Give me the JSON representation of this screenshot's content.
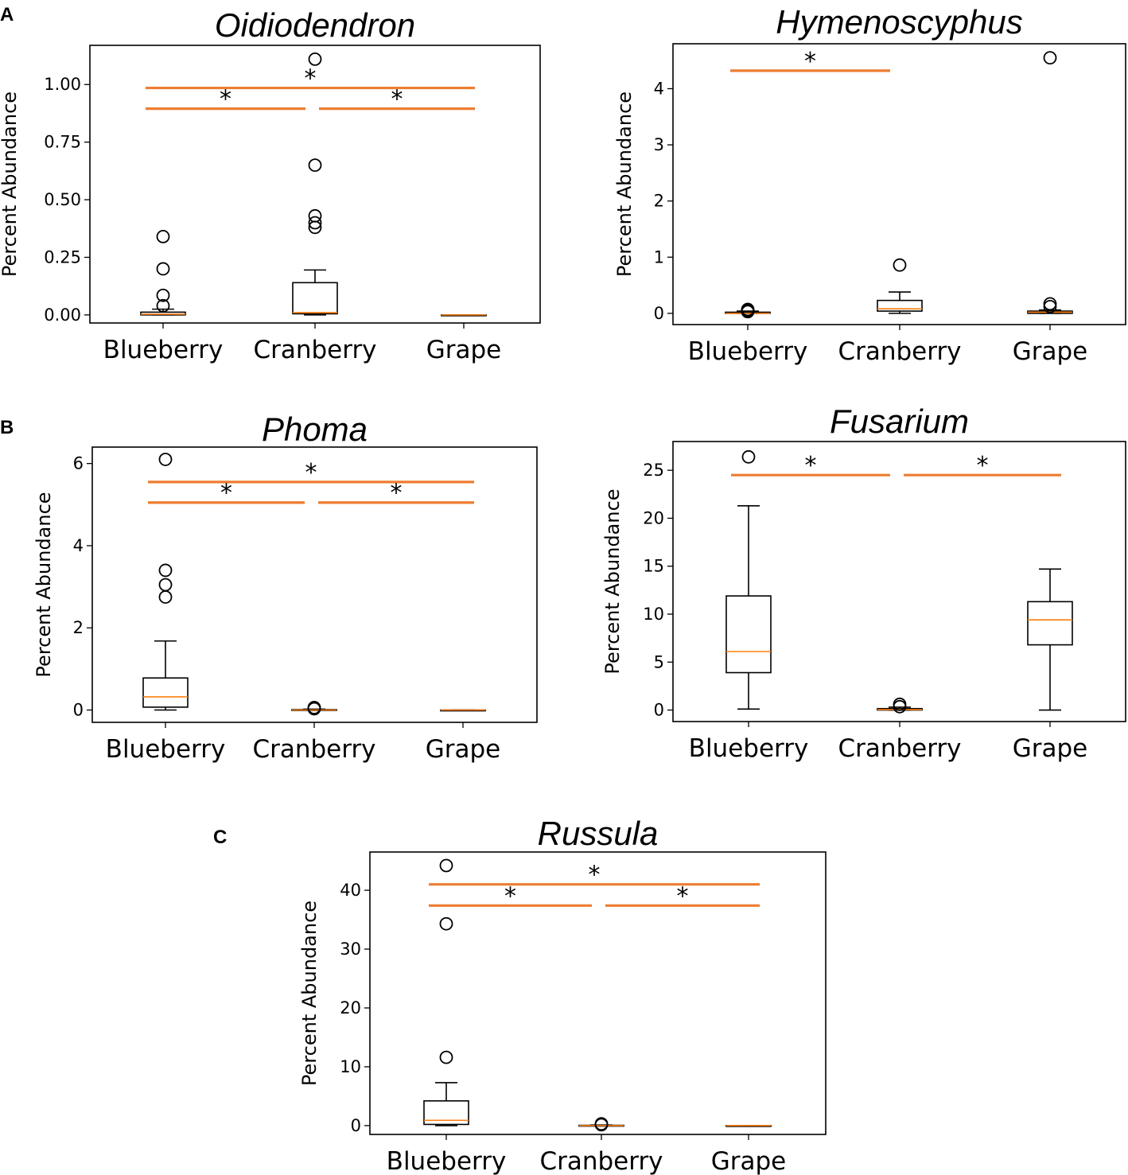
{
  "panel_letters": [
    "A",
    "B",
    "C"
  ],
  "chart_data": [
    {
      "type": "box",
      "panel": "A",
      "title": "Oidiodendron",
      "xlabel": "",
      "ylabel": "Percent Abundance",
      "categories": [
        "Blueberry",
        "Cranberry",
        "Grape"
      ],
      "ylim": [
        -0.035,
        1.17
      ],
      "yticks": [
        0.0,
        0.25,
        0.5,
        0.75,
        1.0
      ],
      "ytick_labels": [
        "0.00",
        "0.25",
        "0.50",
        "0.75",
        "1.00"
      ],
      "boxes": [
        {
          "whislo": 0.0,
          "q1": 0.0,
          "med": 0.003,
          "q3": 0.012,
          "whishi": 0.025,
          "fliers": [
            0.34,
            0.2,
            0.085,
            0.04
          ]
        },
        {
          "whislo": 0.0,
          "q1": 0.005,
          "med": 0.01,
          "q3": 0.14,
          "whishi": 0.195,
          "fliers": [
            1.11,
            0.65,
            0.43,
            0.4,
            0.38
          ]
        },
        {
          "whislo": 0.0,
          "q1": 0.0,
          "med": 0.0,
          "q3": 0.0,
          "whishi": 0.0,
          "fliers": []
        }
      ],
      "significance": [
        {
          "from": 0,
          "to": 2,
          "y": 0.985,
          "label": "*"
        },
        {
          "from": 0,
          "to": 1,
          "y": 0.895,
          "label": "*"
        },
        {
          "from": 1,
          "to": 2,
          "y": 0.895,
          "label": "*"
        }
      ]
    },
    {
      "type": "box",
      "panel": "A",
      "title": "Hymenoscyphus",
      "xlabel": "",
      "ylabel": "Percent Abundance",
      "categories": [
        "Blueberry",
        "Cranberry",
        "Grape"
      ],
      "ylim": [
        -0.2,
        4.8
      ],
      "yticks": [
        0,
        1,
        2,
        3,
        4
      ],
      "ytick_labels": [
        "0",
        "1",
        "2",
        "3",
        "4"
      ],
      "boxes": [
        {
          "whislo": 0.0,
          "q1": 0.0,
          "med": 0.0,
          "q3": 0.02,
          "whishi": 0.04,
          "fliers": [
            0.07,
            0.05,
            0.03
          ]
        },
        {
          "whislo": 0.0,
          "q1": 0.04,
          "med": 0.08,
          "q3": 0.23,
          "whishi": 0.38,
          "fliers": [
            0.86
          ]
        },
        {
          "whislo": 0.0,
          "q1": 0.0,
          "med": 0.02,
          "q3": 0.04,
          "whishi": 0.06,
          "fliers": [
            4.55,
            0.17,
            0.12
          ]
        }
      ],
      "significance": [
        {
          "from": 0,
          "to": 1,
          "y": 4.32,
          "label": "*"
        }
      ]
    },
    {
      "type": "box",
      "panel": "B",
      "title": "Phoma",
      "xlabel": "",
      "ylabel": "Percent Abundance",
      "categories": [
        "Blueberry",
        "Cranberry",
        "Grape"
      ],
      "ylim": [
        -0.3,
        6.4
      ],
      "yticks": [
        0,
        2,
        4,
        6
      ],
      "ytick_labels": [
        "0",
        "2",
        "4",
        "6"
      ],
      "boxes": [
        {
          "whislo": 0.0,
          "q1": 0.07,
          "med": 0.32,
          "q3": 0.78,
          "whishi": 1.68,
          "fliers": [
            6.1,
            3.4,
            3.05,
            2.75
          ]
        },
        {
          "whislo": 0.0,
          "q1": 0.0,
          "med": 0.0,
          "q3": 0.01,
          "whishi": 0.02,
          "fliers": [
            0.06,
            0.03
          ]
        },
        {
          "whislo": 0.0,
          "q1": 0.0,
          "med": 0.0,
          "q3": 0.0,
          "whishi": 0.0,
          "fliers": []
        }
      ],
      "significance": [
        {
          "from": 0,
          "to": 2,
          "y": 5.55,
          "label": "*"
        },
        {
          "from": 0,
          "to": 1,
          "y": 5.05,
          "label": "*"
        },
        {
          "from": 1,
          "to": 2,
          "y": 5.05,
          "label": "*"
        }
      ]
    },
    {
      "type": "box",
      "panel": "B",
      "title": "Fusarium",
      "xlabel": "",
      "ylabel": "Percent Abundance",
      "categories": [
        "Blueberry",
        "Cranberry",
        "Grape"
      ],
      "ylim": [
        -1.2,
        28.0
      ],
      "yticks": [
        0,
        5,
        10,
        15,
        20,
        25
      ],
      "ytick_labels": [
        "0",
        "5",
        "10",
        "15",
        "20",
        "25"
      ],
      "boxes": [
        {
          "whislo": 0.1,
          "q1": 3.9,
          "med": 6.1,
          "q3": 11.9,
          "whishi": 21.3,
          "fliers": [
            26.4
          ]
        },
        {
          "whislo": 0.0,
          "q1": 0.0,
          "med": 0.05,
          "q3": 0.15,
          "whishi": 0.3,
          "fliers": [
            0.6,
            0.35
          ]
        },
        {
          "whislo": 0.0,
          "q1": 6.8,
          "med": 9.4,
          "q3": 11.3,
          "whishi": 14.7,
          "fliers": []
        }
      ],
      "significance": [
        {
          "from": 0,
          "to": 1,
          "y": 24.5,
          "label": "*"
        },
        {
          "from": 1,
          "to": 2,
          "y": 24.5,
          "label": "*"
        }
      ]
    },
    {
      "type": "box",
      "panel": "C",
      "title": "Russula",
      "xlabel": "",
      "ylabel": "Percent Abundance",
      "categories": [
        "Blueberry",
        "Cranberry",
        "Grape"
      ],
      "ylim": [
        -1.5,
        46.5
      ],
      "yticks": [
        0,
        10,
        20,
        30,
        40
      ],
      "ytick_labels": [
        "0",
        "10",
        "20",
        "30",
        "40"
      ],
      "boxes": [
        {
          "whislo": 0.0,
          "q1": 0.2,
          "med": 0.9,
          "q3": 4.2,
          "whishi": 7.3,
          "fliers": [
            44.2,
            34.3,
            11.6
          ]
        },
        {
          "whislo": 0.0,
          "q1": 0.0,
          "med": 0.0,
          "q3": 0.05,
          "whishi": 0.1,
          "fliers": [
            0.3,
            0.15
          ]
        },
        {
          "whislo": 0.0,
          "q1": 0.0,
          "med": 0.0,
          "q3": 0.0,
          "whishi": 0.0,
          "fliers": []
        }
      ],
      "significance": [
        {
          "from": 0,
          "to": 2,
          "y": 41.0,
          "label": "*"
        },
        {
          "from": 0,
          "to": 1,
          "y": 37.4,
          "label": "*"
        },
        {
          "from": 1,
          "to": 2,
          "y": 37.4,
          "label": "*"
        }
      ]
    }
  ],
  "colors": {
    "box": "#000000",
    "median": "#ff7f0e",
    "significance_bar": "#ed7d31",
    "flier": "#000000"
  }
}
